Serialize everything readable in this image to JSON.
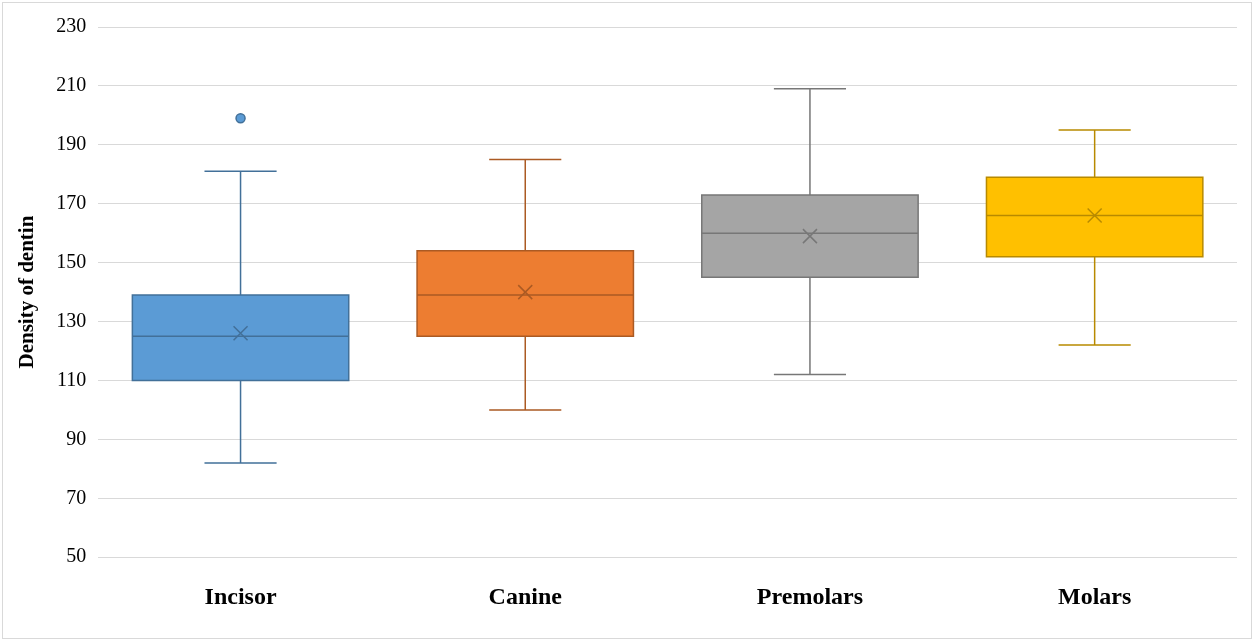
{
  "chart_data": {
    "type": "box",
    "ylabel": "Density of dentin",
    "categories": [
      "Incisor",
      "Canine",
      "Premolars",
      "Molars"
    ],
    "boxes": [
      {
        "low": 82,
        "q1": 110,
        "median": 125,
        "q3": 139,
        "high": 181,
        "mean": 126,
        "outliers": [
          199
        ]
      },
      {
        "low": 100,
        "q1": 125,
        "median": 139,
        "q3": 154,
        "high": 185,
        "mean": 140
      },
      {
        "low": 112,
        "q1": 145,
        "median": 160,
        "q3": 173,
        "high": 209,
        "mean": 159
      },
      {
        "low": 122,
        "q1": 152,
        "median": 166,
        "q3": 179,
        "high": 195,
        "mean": 166
      }
    ],
    "colors": [
      "#5b9bd5",
      "#ed7d31",
      "#a5a5a5",
      "#ffc000"
    ],
    "ylim": [
      50,
      230
    ],
    "yticks": [
      50,
      70,
      90,
      110,
      130,
      150,
      170,
      190,
      210,
      230
    ],
    "grid": "y",
    "legend": false,
    "marker": "cross"
  }
}
